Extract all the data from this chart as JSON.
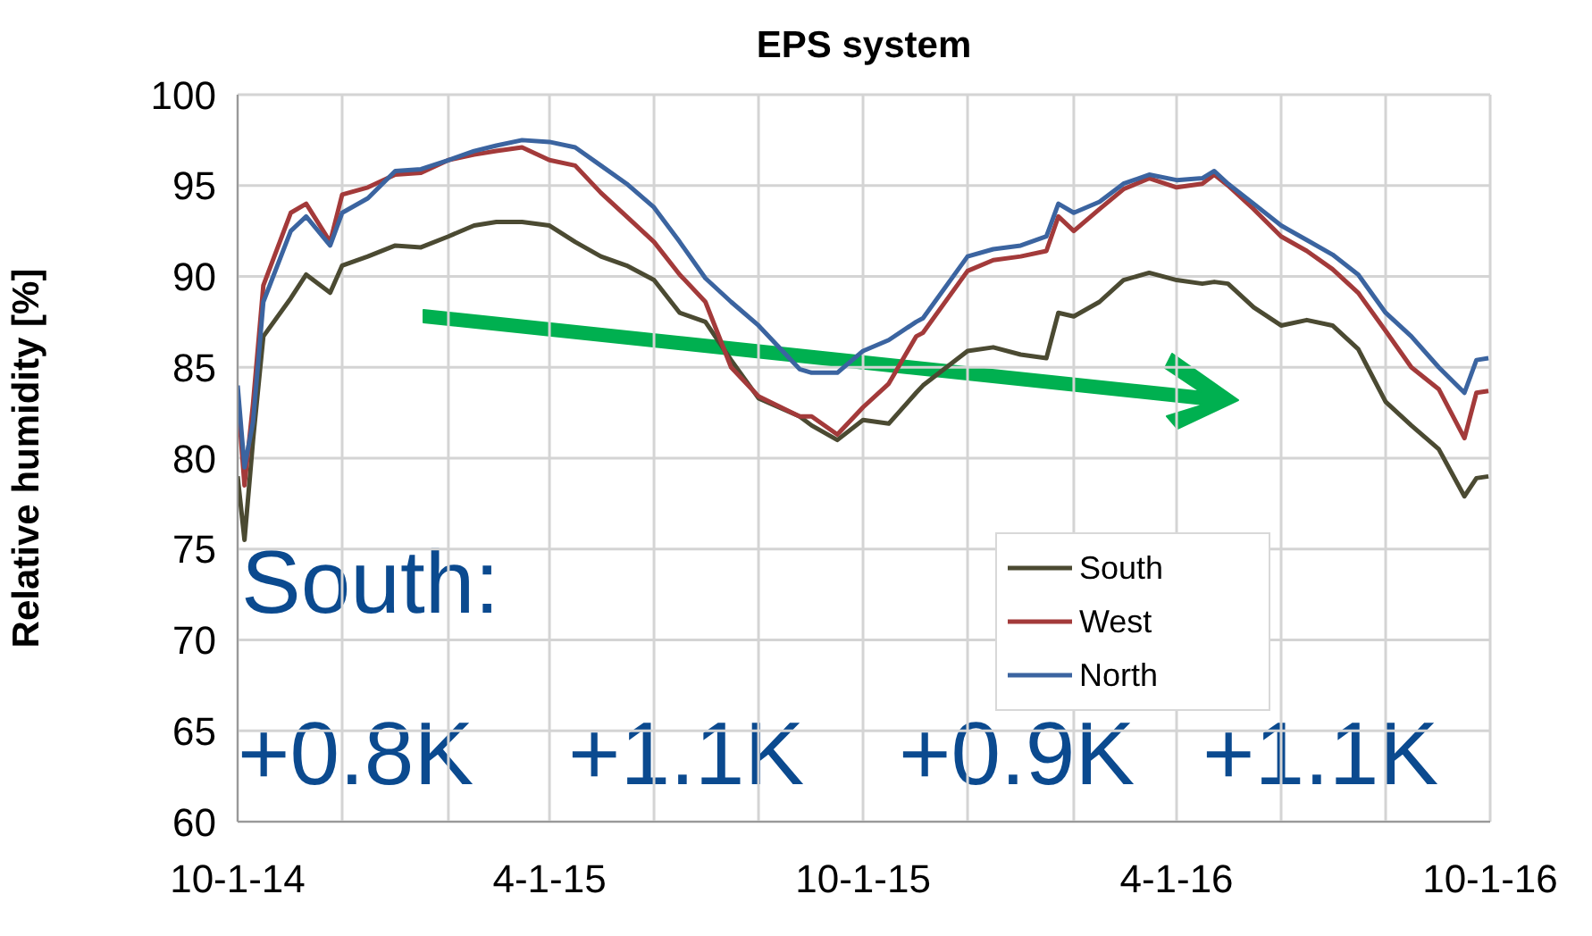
{
  "chart_data": {
    "type": "line",
    "title": "EPS system",
    "ylabel": "Relative humidity [%]",
    "x": [
      "2014-10-01",
      "2014-10-05",
      "2014-10-10",
      "2014-10-16",
      "2014-11-01",
      "2014-11-10",
      "2014-11-24",
      "2014-12-01",
      "2014-12-16",
      "2015-01-01",
      "2015-01-16",
      "2015-02-01",
      "2015-02-16",
      "2015-03-01",
      "2015-03-16",
      "2015-04-01",
      "2015-04-16",
      "2015-05-01",
      "2015-05-16",
      "2015-06-01",
      "2015-06-16",
      "2015-07-01",
      "2015-07-16",
      "2015-08-01",
      "2015-08-25",
      "2015-09-01",
      "2015-09-16",
      "2015-10-01",
      "2015-10-16",
      "2015-11-01",
      "2015-11-05",
      "2015-12-01",
      "2015-12-16",
      "2016-01-01",
      "2016-01-16",
      "2016-01-23",
      "2016-02-01",
      "2016-02-16",
      "2016-03-01",
      "2016-03-16",
      "2016-04-01",
      "2016-04-16",
      "2016-04-23",
      "2016-05-01",
      "2016-05-16",
      "2016-06-01",
      "2016-06-16",
      "2016-07-01",
      "2016-07-16",
      "2016-08-01",
      "2016-08-16",
      "2016-09-01",
      "2016-09-16",
      "2016-09-23",
      "2016-09-30"
    ],
    "series": [
      {
        "name": "South",
        "color": "#4b4a32",
        "values": [
          79,
          75.5,
          81,
          86.7,
          88.8,
          90.1,
          89.1,
          90.6,
          91.1,
          91.7,
          91.6,
          92.2,
          92.8,
          93.0,
          93.0,
          92.8,
          91.9,
          91.1,
          90.6,
          89.8,
          88.0,
          87.5,
          85.4,
          83.3,
          82.3,
          81.8,
          81.0,
          82.1,
          81.9,
          83.6,
          84.0,
          85.9,
          86.1,
          85.7,
          85.5,
          88.0,
          87.8,
          88.6,
          89.8,
          90.2,
          89.8,
          89.6,
          89.7,
          89.6,
          88.3,
          87.3,
          87.6,
          87.3,
          86.0,
          83.1,
          81.8,
          80.5,
          77.9,
          78.9,
          79.0
        ]
      },
      {
        "name": "West",
        "color": "#a33a3a",
        "values": [
          83.5,
          78.5,
          83,
          89.5,
          93.5,
          94,
          91.9,
          94.5,
          94.9,
          95.6,
          95.7,
          96.4,
          96.7,
          96.9,
          97.1,
          96.4,
          96.1,
          94.6,
          93.3,
          91.9,
          90.1,
          88.6,
          85.0,
          83.4,
          82.3,
          82.3,
          81.3,
          82.8,
          84.1,
          86.7,
          86.9,
          90.3,
          90.9,
          91.1,
          91.4,
          93.3,
          92.5,
          93.7,
          94.8,
          95.4,
          94.9,
          95.1,
          95.6,
          95.0,
          93.7,
          92.2,
          91.4,
          90.4,
          89.1,
          87.0,
          85.0,
          83.8,
          81.1,
          83.6,
          83.7
        ]
      },
      {
        "name": "North",
        "color": "#3b64a0",
        "values": [
          84,
          79.5,
          82,
          88.6,
          92.5,
          93.3,
          91.7,
          93.5,
          94.3,
          95.8,
          95.9,
          96.4,
          96.9,
          97.2,
          97.5,
          97.4,
          97.1,
          96.1,
          95.1,
          93.8,
          91.9,
          89.9,
          88.6,
          87.3,
          84.9,
          84.7,
          84.7,
          85.9,
          86.5,
          87.5,
          87.7,
          91.1,
          91.5,
          91.7,
          92.2,
          94.0,
          93.5,
          94.1,
          95.1,
          95.6,
          95.3,
          95.4,
          95.8,
          95.1,
          94.0,
          92.8,
          92.0,
          91.2,
          90.1,
          88.0,
          86.7,
          85.0,
          83.6,
          85.4,
          85.5
        ]
      }
    ],
    "xlim": [
      "2014-10-01",
      "2016-10-01"
    ],
    "xticks": [
      {
        "value": "2014-10-01",
        "label": "10-1-14"
      },
      {
        "value": "2014-12-01",
        "label": null
      },
      {
        "value": "2015-02-01",
        "label": null
      },
      {
        "value": "2015-04-01",
        "label": "4-1-15"
      },
      {
        "value": "2015-06-01",
        "label": null
      },
      {
        "value": "2015-08-01",
        "label": null
      },
      {
        "value": "2015-10-01",
        "label": "10-1-15"
      },
      {
        "value": "2015-12-01",
        "label": null
      },
      {
        "value": "2016-02-01",
        "label": null
      },
      {
        "value": "2016-04-01",
        "label": "4-1-16"
      },
      {
        "value": "2016-06-01",
        "label": null
      },
      {
        "value": "2016-08-01",
        "label": null
      },
      {
        "value": "2016-10-01",
        "label": "10-1-16"
      }
    ],
    "ylim": [
      60,
      100
    ],
    "yticks": [
      60,
      65,
      70,
      75,
      80,
      85,
      90,
      95,
      100
    ],
    "grid": true,
    "legend": "bottom right",
    "annotations": [
      "South:",
      "+0.8K",
      "+1.1K",
      "+0.9K",
      "+1.1K"
    ]
  }
}
